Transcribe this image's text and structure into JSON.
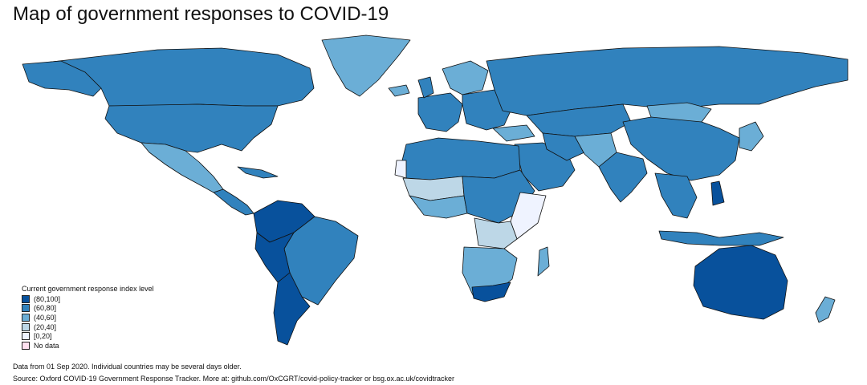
{
  "title": "Map of government responses to COVID-19",
  "legend": {
    "title": "Current government response index level",
    "items": [
      {
        "label": "(80,100]",
        "color": "#08519c"
      },
      {
        "label": "(60,80]",
        "color": "#3182bd"
      },
      {
        "label": "(40,60]",
        "color": "#6baed6"
      },
      {
        "label": "(20,40]",
        "color": "#bdd7e7"
      },
      {
        "label": "[0,20]",
        "color": "#eff3ff"
      },
      {
        "label": "No data",
        "color": "#fde0ef"
      }
    ]
  },
  "footer": {
    "date_note": "Data from 01 Sep 2020. Individual countries may be several days older.",
    "source": "Source: Oxford COVID-19 Government Response Tracker. More at: github.com/OxCGRT/covid-policy-tracker or bsg.ox.ac.uk/covidtracker"
  }
}
